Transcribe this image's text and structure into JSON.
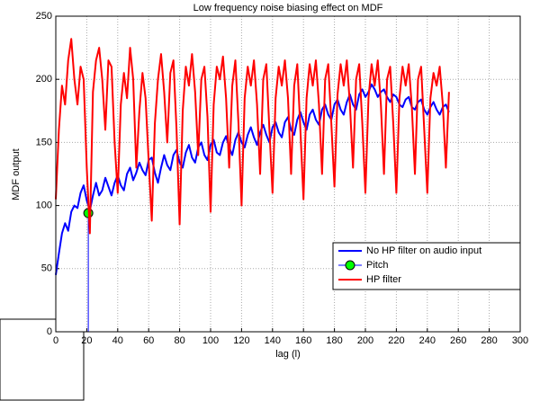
{
  "chart_data": {
    "type": "line",
    "title": "Low frequency noise biasing effect on MDF",
    "xlabel": "lag (l)",
    "ylabel": "MDF output",
    "xlim": [
      0,
      300
    ],
    "xticks": [
      0,
      20,
      40,
      60,
      80,
      100,
      120,
      140,
      160,
      180,
      200,
      220,
      240,
      260,
      280,
      300
    ],
    "ylim": [
      0,
      250
    ],
    "yticks": [
      0,
      50,
      100,
      150,
      200,
      250
    ],
    "grid": true,
    "legend": "lower right",
    "series": [
      {
        "name": "No HP filter on audio input",
        "color": "#0000ff",
        "x": [
          0,
          2,
          4,
          6,
          8,
          10,
          12,
          14,
          16,
          18,
          20,
          22,
          24,
          26,
          28,
          30,
          32,
          34,
          36,
          38,
          40,
          42,
          44,
          46,
          48,
          50,
          52,
          54,
          56,
          58,
          60,
          62,
          64,
          66,
          68,
          70,
          72,
          74,
          76,
          78,
          80,
          82,
          84,
          86,
          88,
          90,
          92,
          94,
          96,
          98,
          100,
          102,
          104,
          106,
          108,
          110,
          112,
          114,
          116,
          118,
          120,
          122,
          124,
          126,
          128,
          130,
          132,
          134,
          136,
          138,
          140,
          142,
          144,
          146,
          148,
          150,
          152,
          154,
          156,
          158,
          160,
          162,
          164,
          166,
          168,
          170,
          172,
          174,
          176,
          178,
          180,
          182,
          184,
          186,
          188,
          190,
          192,
          194,
          196,
          198,
          200,
          202,
          204,
          206,
          208,
          210,
          212,
          214,
          216,
          218,
          220,
          222,
          224,
          226,
          228,
          230,
          232,
          234,
          236,
          238,
          240,
          242,
          244,
          246,
          248,
          250,
          252,
          254
        ],
        "values": [
          45,
          62,
          78,
          86,
          80,
          95,
          100,
          98,
          110,
          116,
          104,
          96,
          108,
          118,
          108,
          112,
          122,
          115,
          108,
          118,
          124,
          116,
          112,
          125,
          130,
          120,
          126,
          134,
          128,
          124,
          136,
          138,
          126,
          118,
          130,
          140,
          132,
          128,
          140,
          144,
          134,
          130,
          142,
          148,
          138,
          134,
          146,
          150,
          140,
          136,
          148,
          152,
          142,
          140,
          150,
          155,
          146,
          140,
          152,
          158,
          150,
          146,
          156,
          162,
          154,
          148,
          158,
          164,
          156,
          150,
          162,
          166,
          158,
          154,
          166,
          170,
          160,
          156,
          168,
          174,
          166,
          160,
          172,
          176,
          168,
          164,
          176,
          180,
          172,
          168,
          180,
          184,
          176,
          172,
          182,
          188,
          180,
          176,
          188,
          192,
          186,
          190,
          196,
          192,
          186,
          190,
          192,
          186,
          182,
          188,
          186,
          180,
          178,
          184,
          186,
          178,
          176,
          182,
          184,
          176,
          172,
          178,
          182,
          176,
          172,
          178,
          180,
          174
        ]
      },
      {
        "name": "Pitch",
        "color": "#0000ff",
        "marker_color": "#00ff00",
        "stem": true,
        "x": [
          21
        ],
        "values": [
          94
        ]
      },
      {
        "name": "HP filter",
        "color": "#ff0000",
        "x": [
          0,
          2,
          4,
          6,
          8,
          10,
          12,
          14,
          16,
          18,
          20,
          22,
          24,
          26,
          28,
          30,
          32,
          34,
          36,
          38,
          40,
          42,
          44,
          46,
          48,
          50,
          52,
          54,
          56,
          58,
          60,
          62,
          64,
          66,
          68,
          70,
          72,
          74,
          76,
          78,
          80,
          82,
          84,
          86,
          88,
          90,
          92,
          94,
          96,
          98,
          100,
          102,
          104,
          106,
          108,
          110,
          112,
          114,
          116,
          118,
          120,
          122,
          124,
          126,
          128,
          130,
          132,
          134,
          136,
          138,
          140,
          142,
          144,
          146,
          148,
          150,
          152,
          154,
          156,
          158,
          160,
          162,
          164,
          166,
          168,
          170,
          172,
          174,
          176,
          178,
          180,
          182,
          184,
          186,
          188,
          190,
          192,
          194,
          196,
          198,
          200,
          202,
          204,
          206,
          208,
          210,
          212,
          214,
          216,
          218,
          220,
          222,
          224,
          226,
          228,
          230,
          232,
          234,
          236,
          238,
          240,
          242,
          244,
          246,
          248,
          250,
          252,
          254
        ],
        "values": [
          105,
          160,
          195,
          180,
          215,
          232,
          200,
          180,
          210,
          200,
          130,
          78,
          190,
          215,
          225,
          200,
          160,
          215,
          210,
          150,
          110,
          180,
          205,
          185,
          225,
          200,
          130,
          175,
          205,
          185,
          135,
          88,
          165,
          200,
          220,
          190,
          150,
          205,
          215,
          160,
          85,
          175,
          210,
          195,
          220,
          190,
          140,
          200,
          210,
          170,
          95,
          180,
          210,
          200,
          218,
          185,
          130,
          195,
          215,
          165,
          100,
          185,
          210,
          195,
          215,
          180,
          125,
          200,
          212,
          160,
          110,
          185,
          210,
          195,
          215,
          185,
          125,
          195,
          212,
          160,
          105,
          185,
          212,
          195,
          215,
          180,
          125,
          200,
          212,
          165,
          115,
          188,
          212,
          195,
          215,
          180,
          130,
          200,
          212,
          165,
          110,
          185,
          212,
          195,
          215,
          180,
          125,
          200,
          210,
          165,
          110,
          185,
          210,
          195,
          212,
          178,
          125,
          200,
          210,
          160,
          110,
          185,
          205,
          195,
          210,
          180,
          130,
          190
        ]
      }
    ]
  }
}
